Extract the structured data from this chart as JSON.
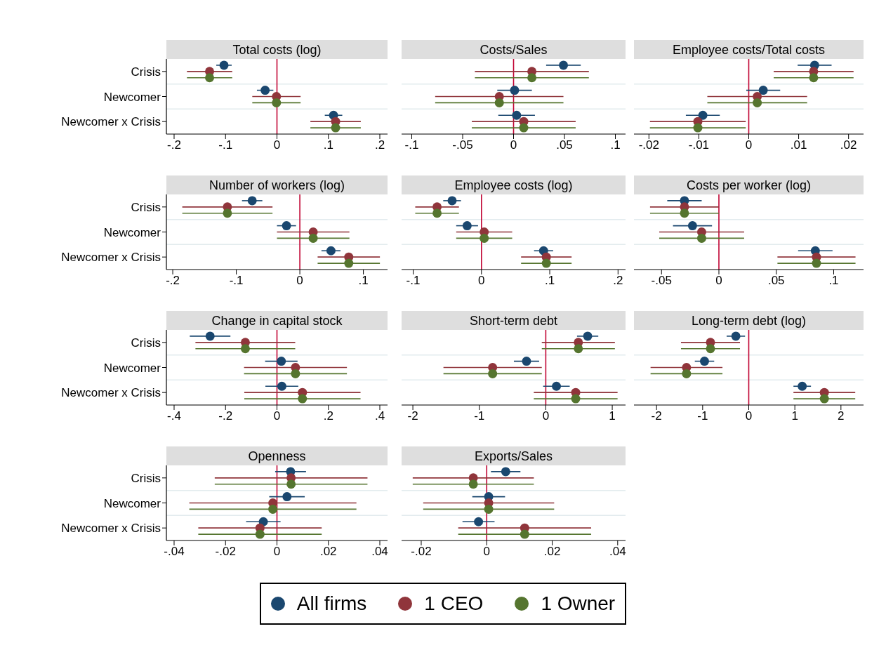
{
  "chart_data": [
    {
      "type": "scatter",
      "title": "Total costs (log)",
      "orientation": "horizontal",
      "categories": [
        "Crisis",
        "Newcomer",
        "Newcomer x Crisis"
      ],
      "series": [
        {
          "name": "All firms",
          "color": "#1a476f",
          "values": [
            -0.103,
            -0.023,
            0.11
          ],
          "errors": [
            0.015,
            0.016,
            0.017
          ]
        },
        {
          "name": "1 CEO",
          "color": "#90353b",
          "values": [
            -0.131,
            -0.001,
            0.114
          ],
          "errors": [
            0.044,
            0.047,
            0.049
          ]
        },
        {
          "name": "1 Owner",
          "color": "#55752f",
          "values": [
            -0.131,
            -0.001,
            0.114
          ],
          "errors": [
            0.044,
            0.047,
            0.049
          ]
        }
      ],
      "xlim": [
        -0.215,
        0.215
      ],
      "xticks": [
        {
          "value": -0.2,
          "label": "-.2"
        },
        {
          "value": -0.1,
          "label": "-.1"
        },
        0,
        {
          "value": 0.1,
          "label": ".1"
        },
        {
          "value": 0.2,
          "label": ".2"
        }
      ],
      "grid": "y",
      "marker": "circle",
      "legend": "bottom",
      "ref_lines": [
        {
          "axis": "x",
          "value": 0,
          "color": "#c10534"
        }
      ]
    },
    {
      "type": "scatter",
      "title": "Costs/Sales",
      "orientation": "horizontal",
      "categories": [
        null,
        null,
        null
      ],
      "series": [
        {
          "color": "#1a476f",
          "values": [
            0.049,
            0.001,
            0.003
          ],
          "errors": [
            0.017,
            0.017,
            0.018
          ]
        },
        {
          "color": "#90353b",
          "values": [
            0.018,
            -0.014,
            0.01
          ],
          "errors": [
            0.056,
            0.063,
            0.051
          ]
        },
        {
          "color": "#55752f",
          "values": [
            0.018,
            -0.014,
            0.01
          ],
          "errors": [
            0.056,
            0.063,
            0.051
          ]
        }
      ],
      "xlim": [
        -0.11,
        0.11
      ],
      "xticks": [
        {
          "value": -0.1,
          "label": "-.1"
        },
        {
          "value": -0.05,
          "label": "-.05"
        },
        0,
        {
          "value": 0.05,
          "label": ".05"
        },
        {
          "value": 0.1,
          "label": ".1"
        }
      ],
      "grid": "y",
      "marker": "circle",
      "tick_labels": "x",
      "ref_lines": [
        {
          "axis": "x",
          "value": 0,
          "color": "#c10534"
        }
      ]
    },
    {
      "type": "scatter",
      "title": "Employee costs/Total costs",
      "orientation": "horizontal",
      "categories": [
        null,
        null,
        null
      ],
      "series": [
        {
          "color": "#1a476f",
          "values": [
            0.0132,
            0.0029,
            -0.0092
          ],
          "errors": [
            0.0034,
            0.0034,
            0.0034
          ]
        },
        {
          "color": "#90353b",
          "values": [
            0.013,
            0.0017,
            -0.0102
          ],
          "errors": [
            0.008,
            0.01,
            0.0096
          ]
        },
        {
          "color": "#55752f",
          "values": [
            0.013,
            0.0017,
            -0.0102
          ],
          "errors": [
            0.008,
            0.01,
            0.0096
          ]
        }
      ],
      "xlim": [
        -0.023,
        0.023
      ],
      "xticks": [
        {
          "value": -0.02,
          "label": "-.02"
        },
        {
          "value": -0.01,
          "label": "-.01"
        },
        0,
        {
          "value": 0.01,
          "label": ".01"
        },
        {
          "value": 0.02,
          "label": ".02"
        }
      ],
      "grid": "y",
      "marker": "circle",
      "tick_labels": "x",
      "ref_lines": [
        {
          "axis": "x",
          "value": 0,
          "color": "#c10534"
        }
      ]
    },
    {
      "type": "scatter",
      "title": "Number of workers (log)",
      "orientation": "horizontal",
      "categories": [
        "Crisis",
        "Newcomer",
        "Newcomer x Crisis"
      ],
      "series": [
        {
          "color": "#1a476f",
          "values": [
            -0.075,
            -0.021,
            0.049
          ],
          "errors": [
            0.016,
            0.015,
            0.015
          ]
        },
        {
          "color": "#90353b",
          "values": [
            -0.114,
            0.021,
            0.077
          ],
          "errors": [
            0.071,
            0.057,
            0.049
          ]
        },
        {
          "color": "#55752f",
          "values": [
            -0.114,
            0.021,
            0.077
          ],
          "errors": [
            0.071,
            0.057,
            0.049
          ]
        }
      ],
      "xlim": [
        -0.21,
        0.138
      ],
      "xticks": [
        {
          "value": -0.2,
          "label": "-.2"
        },
        {
          "value": -0.1,
          "label": "-.1"
        },
        0,
        {
          "value": 0.1,
          "label": ".1"
        }
      ],
      "grid": "y",
      "marker": "circle",
      "ref_lines": [
        {
          "axis": "x",
          "value": 0,
          "color": "#c10534"
        }
      ]
    },
    {
      "type": "scatter",
      "title": "Employee costs (log)",
      "orientation": "horizontal",
      "categories": [
        null,
        null,
        null
      ],
      "series": [
        {
          "color": "#1a476f",
          "values": [
            -0.043,
            -0.021,
            0.091
          ],
          "errors": [
            0.013,
            0.016,
            0.014
          ]
        },
        {
          "color": "#90353b",
          "values": [
            -0.065,
            0.004,
            0.095
          ],
          "errors": [
            0.032,
            0.041,
            0.037
          ]
        },
        {
          "color": "#55752f",
          "values": [
            -0.065,
            0.004,
            0.095
          ],
          "errors": [
            0.032,
            0.041,
            0.037
          ]
        }
      ],
      "xlim": [
        -0.117,
        0.211
      ],
      "xticks": [
        {
          "value": -0.1,
          "label": "-.1"
        },
        0,
        {
          "value": 0.1,
          "label": ".1"
        },
        {
          "value": 0.2,
          "label": ".2"
        }
      ],
      "grid": "y",
      "marker": "circle",
      "tick_labels": "x",
      "ref_lines": [
        {
          "axis": "x",
          "value": 0,
          "color": "#c10534"
        }
      ]
    },
    {
      "type": "scatter",
      "title": "Costs per worker (log)",
      "orientation": "horizontal",
      "categories": [
        null,
        null,
        null
      ],
      "series": [
        {
          "color": "#1a476f",
          "values": [
            -0.03,
            -0.023,
            0.084
          ],
          "errors": [
            0.015,
            0.017,
            0.015
          ]
        },
        {
          "color": "#90353b",
          "values": [
            -0.03,
            -0.015,
            0.085
          ],
          "errors": [
            0.03,
            0.037,
            0.034
          ]
        },
        {
          "color": "#55752f",
          "values": [
            -0.03,
            -0.015,
            0.085
          ],
          "errors": [
            0.03,
            0.037,
            0.034
          ]
        }
      ],
      "xlim": [
        -0.074,
        0.126
      ],
      "xticks": [
        {
          "value": -0.05,
          "label": "-.05"
        },
        0,
        {
          "value": 0.05,
          "label": ".05"
        },
        {
          "value": 0.1,
          "label": ".1"
        }
      ],
      "grid": "y",
      "marker": "circle",
      "tick_labels": "x",
      "ref_lines": [
        {
          "axis": "x",
          "value": 0,
          "color": "#c10534"
        }
      ]
    },
    {
      "type": "scatter",
      "title": "Change in capital stock",
      "orientation": "horizontal",
      "categories": [
        "Crisis",
        "Newcomer",
        "Newcomer x Crisis"
      ],
      "series": [
        {
          "color": "#1a476f",
          "values": [
            -0.26,
            0.017,
            0.019
          ],
          "errors": [
            0.079,
            0.063,
            0.064
          ]
        },
        {
          "color": "#90353b",
          "values": [
            -0.123,
            0.072,
            0.099
          ],
          "errors": [
            0.194,
            0.2,
            0.226
          ]
        },
        {
          "color": "#55752f",
          "values": [
            -0.123,
            0.072,
            0.099
          ],
          "errors": [
            0.194,
            0.2,
            0.226
          ]
        }
      ],
      "xlim": [
        -0.43,
        0.43
      ],
      "xticks": [
        {
          "value": -0.4,
          "label": "-.4"
        },
        {
          "value": -0.2,
          "label": "-.2"
        },
        0,
        {
          "value": 0.2,
          "label": ".2"
        },
        {
          "value": 0.4,
          "label": ".4"
        }
      ],
      "grid": "y",
      "marker": "circle",
      "ref_lines": [
        {
          "axis": "x",
          "value": 0,
          "color": "#c10534"
        }
      ]
    },
    {
      "type": "scatter",
      "title": "Short-term debt",
      "orientation": "horizontal",
      "categories": [
        null,
        null,
        null
      ],
      "series": [
        {
          "color": "#1a476f",
          "values": [
            0.63,
            -0.29,
            0.16
          ],
          "errors": [
            0.16,
            0.19,
            0.2
          ]
        },
        {
          "color": "#90353b",
          "values": [
            0.49,
            -0.8,
            0.45
          ],
          "errors": [
            0.55,
            0.74,
            0.63
          ]
        },
        {
          "color": "#55752f",
          "values": [
            0.49,
            -0.8,
            0.45
          ],
          "errors": [
            0.55,
            0.74,
            0.63
          ]
        }
      ],
      "xlim": [
        -2.17,
        1.2
      ],
      "xticks": [
        -2,
        -1,
        0,
        1
      ],
      "grid": "y",
      "marker": "circle",
      "tick_labels": "x",
      "ref_lines": [
        {
          "axis": "x",
          "value": 0,
          "color": "#c10534"
        }
      ]
    },
    {
      "type": "scatter",
      "title": "Long-term debt (log)",
      "orientation": "horizontal",
      "categories": [
        null,
        null,
        null
      ],
      "series": [
        {
          "color": "#1a476f",
          "values": [
            -0.28,
            -0.96,
            1.16
          ],
          "errors": [
            0.2,
            0.21,
            0.19
          ]
        },
        {
          "color": "#90353b",
          "values": [
            -0.83,
            -1.35,
            1.64
          ],
          "errors": [
            0.64,
            0.78,
            0.67
          ]
        },
        {
          "color": "#55752f",
          "values": [
            -0.83,
            -1.35,
            1.64
          ],
          "errors": [
            0.64,
            0.78,
            0.67
          ]
        }
      ],
      "xlim": [
        -2.49,
        2.49
      ],
      "xticks": [
        -2,
        -1,
        0,
        1,
        2
      ],
      "grid": "y",
      "marker": "circle",
      "tick_labels": "x",
      "ref_lines": [
        {
          "axis": "x",
          "value": 0,
          "color": "#c10534"
        }
      ]
    },
    {
      "type": "scatter",
      "title": "Openness",
      "orientation": "horizontal",
      "categories": [
        "Crisis",
        "Newcomer",
        "Newcomer x Crisis"
      ],
      "series": [
        {
          "color": "#1a476f",
          "values": [
            0.0053,
            0.0039,
            -0.0053
          ],
          "errors": [
            0.006,
            0.0069,
            0.0067
          ]
        },
        {
          "color": "#90353b",
          "values": [
            0.0055,
            -0.0016,
            -0.0066
          ],
          "errors": [
            0.0297,
            0.0325,
            0.024
          ]
        },
        {
          "color": "#55752f",
          "values": [
            0.0055,
            -0.0016,
            -0.0066
          ],
          "errors": [
            0.0297,
            0.0325,
            0.024
          ]
        }
      ],
      "xlim": [
        -0.043,
        0.043
      ],
      "xticks": [
        {
          "value": -0.04,
          "label": "-.04"
        },
        {
          "value": -0.02,
          "label": "-.02"
        },
        0,
        {
          "value": 0.02,
          "label": ".02"
        },
        {
          "value": 0.04,
          "label": ".04"
        }
      ],
      "grid": "y",
      "marker": "circle",
      "ref_lines": [
        {
          "axis": "x",
          "value": 0,
          "color": "#c10534"
        }
      ]
    },
    {
      "type": "scatter",
      "title": "Exports/Sales",
      "orientation": "horizontal",
      "categories": [
        null,
        null,
        null
      ],
      "series": [
        {
          "color": "#1a476f",
          "values": [
            0.0058,
            0.0006,
            -0.0025
          ],
          "errors": [
            0.0045,
            0.005,
            0.0049
          ]
        },
        {
          "color": "#90353b",
          "values": [
            -0.0041,
            0.0006,
            0.0116
          ],
          "errors": [
            0.0185,
            0.02,
            0.0203
          ]
        },
        {
          "color": "#55752f",
          "values": [
            -0.0041,
            0.0006,
            0.0116
          ],
          "errors": [
            0.0185,
            0.02,
            0.0203
          ]
        }
      ],
      "xlim": [
        -0.026,
        0.0424
      ],
      "xticks": [
        {
          "value": -0.02,
          "label": "-.02"
        },
        0,
        {
          "value": 0.02,
          "label": ".02"
        },
        {
          "value": 0.04,
          "label": ".04"
        }
      ],
      "grid": "y",
      "marker": "circle",
      "tick_labels": "x",
      "ref_lines": [
        {
          "axis": "x",
          "value": 0,
          "color": "#c10534"
        }
      ]
    }
  ]
}
